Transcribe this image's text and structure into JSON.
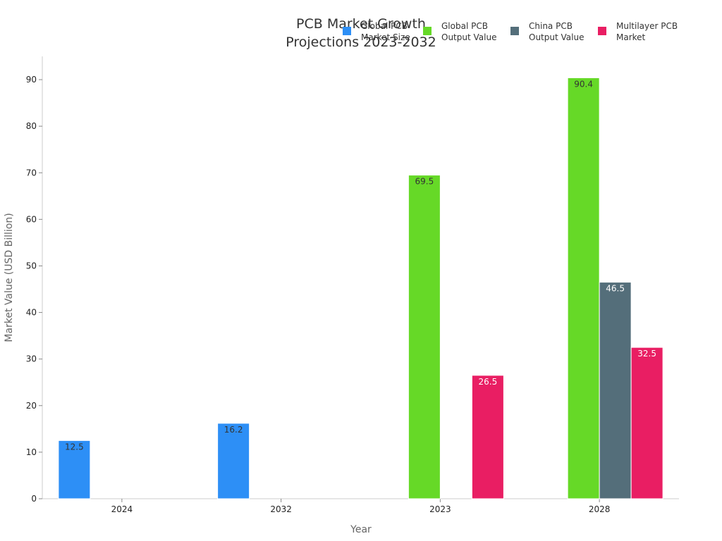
{
  "chart_data": {
    "type": "bar",
    "title": [
      "PCB Market Growth",
      "Projections 2023-2032"
    ],
    "xlabel": "Year",
    "ylabel": "Market Value (USD Billion)",
    "ylim": [
      0,
      95
    ],
    "yticks": [
      0,
      10,
      20,
      30,
      40,
      50,
      60,
      70,
      80,
      90
    ],
    "grid": false,
    "legend_position": "top-right",
    "categories": [
      "2024",
      "2032",
      "2023",
      "2028"
    ],
    "series": [
      {
        "name": [
          "Global PCB",
          "Market Size"
        ],
        "color": "#2d8ff6",
        "label_color": "#333333",
        "values": [
          12.5,
          16.2,
          null,
          null
        ]
      },
      {
        "name": [
          "Global PCB",
          "Output Value"
        ],
        "color": "#66d927",
        "label_color": "#333333",
        "values": [
          null,
          null,
          69.5,
          90.4
        ]
      },
      {
        "name": [
          "China PCB",
          "Output Value"
        ],
        "color": "#546e7a",
        "label_color": "#ffffff",
        "values": [
          null,
          null,
          null,
          46.5
        ]
      },
      {
        "name": [
          "Multilayer PCB",
          "Market"
        ],
        "color": "#e91e63",
        "label_color": "#ffffff",
        "values": [
          null,
          null,
          26.5,
          32.5
        ]
      }
    ]
  }
}
